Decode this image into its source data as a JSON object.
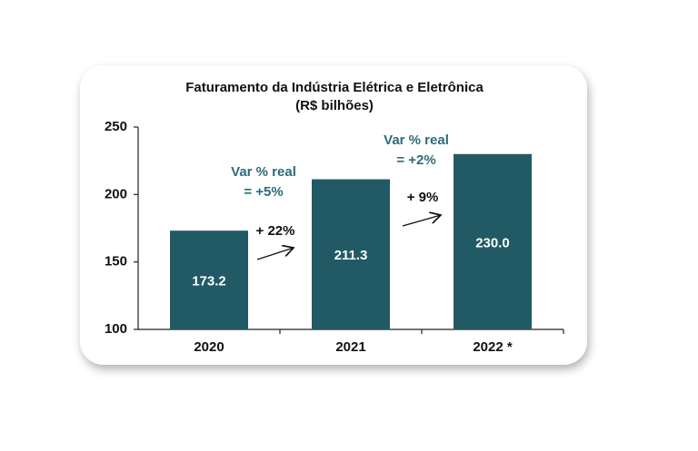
{
  "chart_data": {
    "type": "bar",
    "title": "Faturamento da Indústria Elétrica e Eletrônica",
    "subtitle": "(R$ bilhões)",
    "categories": [
      "2020",
      "2021",
      "2022 *"
    ],
    "values": [
      173.2,
      211.3,
      230
    ],
    "value_labels": [
      "173.2",
      "211.3",
      "230.0"
    ],
    "color": "#215a65",
    "ylim": [
      100,
      250
    ],
    "yticks": [
      100,
      150,
      200,
      250
    ],
    "annotations": [
      [
        "+ 22%"
      ],
      [
        "+ 9%"
      ],
      [
        "Var % real",
        "= +5%"
      ],
      [
        "Var % real",
        "= +2%"
      ]
    ]
  }
}
